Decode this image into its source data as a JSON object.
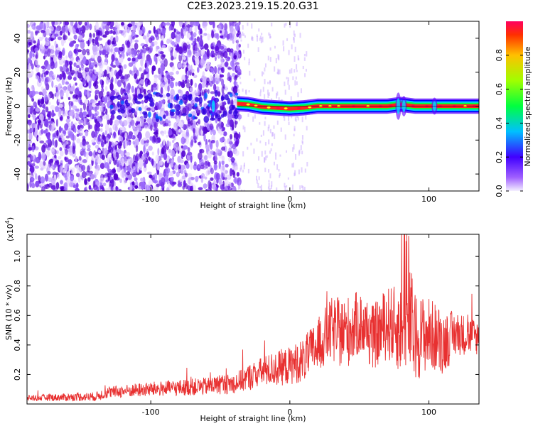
{
  "title": "C2E3.2023.219.15.20.G31",
  "chart_data": [
    {
      "type": "heatmap",
      "xlabel": "Height of straight line (km)",
      "ylabel": "Frequency (Hz)",
      "xlim": [
        -189,
        136
      ],
      "ylim": [
        -50,
        50
      ],
      "xticks": [
        -100,
        0,
        100
      ],
      "yticks": [
        -40,
        -20,
        0,
        20,
        40
      ],
      "colorbar": {
        "label": "Normalized spectral amplitude",
        "range": [
          0,
          1
        ],
        "ticks": [
          "0.0",
          "0.2",
          "0.4",
          "0.6",
          "0.8"
        ],
        "colormap": [
          "#f4f0ff",
          "#8000ff",
          "#0000ff",
          "#00ffff",
          "#00ff00",
          "#ffff00",
          "#ff0000"
        ]
      },
      "regions": [
        {
          "x": [
            -189,
            -38
          ],
          "description_level": 0.25
        },
        {
          "x": [
            -38,
            136
          ],
          "freq_track": 0,
          "level": 1.0
        }
      ],
      "track": {
        "x": [
          -38,
          -30,
          -20,
          -10,
          0,
          10,
          20,
          40,
          60,
          70,
          80,
          90,
          100,
          110,
          136
        ],
        "freq": [
          1.5,
          1,
          -0.5,
          -1,
          -1.5,
          -1,
          0,
          0,
          0,
          0,
          1,
          0,
          0,
          0,
          0
        ]
      }
    },
    {
      "type": "line",
      "xlabel": "Height of straight line (km)",
      "ylabel": "SNR (10 * v/v)",
      "yscale_label": "(x10",
      "yscale_exp": "4",
      "yscale_close": ")",
      "xlim": [
        -189,
        136
      ],
      "ylim": [
        0,
        1.15
      ],
      "xticks": [
        -100,
        0,
        100
      ],
      "yticks": [
        "0.2",
        "0.4",
        "0.6",
        "0.8",
        "1.0"
      ],
      "series": [
        {
          "color": "#e83030",
          "envelope": {
            "x": [
              -189,
              -140,
              -130,
              -100,
              -60,
              -40,
              -30,
              -20,
              -10,
              0,
              10,
              20,
              30,
              40,
              50,
              60,
              70,
              80,
              85,
              90,
              100,
              110,
              120,
              136
            ],
            "mean": [
              0.04,
              0.05,
              0.08,
              0.1,
              0.12,
              0.14,
              0.18,
              0.22,
              0.24,
              0.26,
              0.3,
              0.4,
              0.5,
              0.48,
              0.55,
              0.45,
              0.55,
              0.5,
              0.6,
              0.45,
              0.48,
              0.42,
              0.48,
              0.45
            ],
            "spread": [
              0.02,
              0.03,
              0.04,
              0.05,
              0.06,
              0.07,
              0.09,
              0.1,
              0.12,
              0.13,
              0.15,
              0.18,
              0.22,
              0.25,
              0.22,
              0.22,
              0.25,
              0.3,
              0.45,
              0.3,
              0.25,
              0.22,
              0.15,
              0.12
            ]
          }
        }
      ]
    }
  ]
}
